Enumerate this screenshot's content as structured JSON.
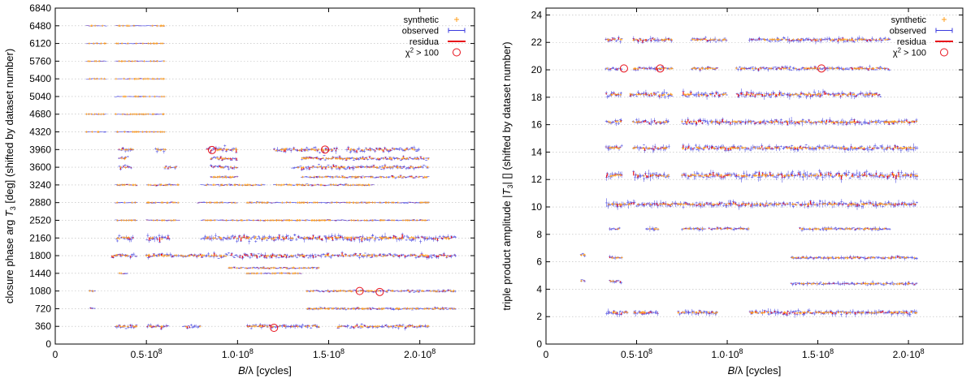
{
  "chart_data": [
    {
      "type": "scatter",
      "xlabel": "B/λ [cycles]",
      "ylabel": "closure phase arg T_3 [deg] (shifted by dataset number)",
      "xlim": [
        0,
        230000000
      ],
      "ylim": [
        0,
        6840
      ],
      "x_ticks": [
        0,
        50000000,
        100000000,
        150000000,
        200000000
      ],
      "x_tick_labels": [
        "0",
        "0.5·10^8",
        "1.0·10^8",
        "1.5·10^8",
        "2.0·10^8"
      ],
      "y_ticks": [
        0,
        360,
        720,
        1080,
        1440,
        1800,
        2160,
        2520,
        2880,
        3240,
        3600,
        3960,
        4320,
        4680,
        5040,
        5400,
        5760,
        6120,
        6480,
        6840
      ],
      "y_tick_labels": [
        "0",
        "360",
        "720",
        "1080",
        "1440",
        "1800",
        "2160",
        "2520",
        "2880",
        "3240",
        "3600",
        "3960",
        "4320",
        "4680",
        "5040",
        "5400",
        "5760",
        "6120",
        "6480",
        "6840"
      ],
      "grid": "horizontal dotted",
      "legend_position": "top-right",
      "legend": [
        {
          "label": "synthetic",
          "marker": "plus",
          "color": "#ff9f1c"
        },
        {
          "label": "observed",
          "marker": "errorbar",
          "color": "#3a3adf"
        },
        {
          "label": "residua",
          "marker": "line",
          "color": "#e8101a"
        },
        {
          "label": "χ² > 100",
          "marker": "circle",
          "color": "#e8101a"
        }
      ],
      "rows": [
        {
          "y": 6480,
          "segments": [
            [
              17000000,
              28000000
            ],
            [
              33000000,
              60000000
            ]
          ],
          "scatter": 12,
          "err": 6
        },
        {
          "y": 6120,
          "segments": [
            [
              17000000,
              28000000
            ],
            [
              33000000,
              60000000
            ]
          ],
          "scatter": 12,
          "err": 6
        },
        {
          "y": 5760,
          "segments": [
            [
              17000000,
              28000000
            ],
            [
              33000000,
              60000000
            ]
          ],
          "scatter": 12,
          "err": 6
        },
        {
          "y": 5400,
          "segments": [
            [
              17000000,
              28000000
            ],
            [
              33000000,
              60000000
            ]
          ],
          "scatter": 12,
          "err": 6
        },
        {
          "y": 5040,
          "segments": [
            [
              33000000,
              60000000
            ]
          ],
          "scatter": 10,
          "err": 5
        },
        {
          "y": 4680,
          "segments": [
            [
              17000000,
              28000000
            ],
            [
              33000000,
              60000000
            ]
          ],
          "scatter": 12,
          "err": 6
        },
        {
          "y": 4320,
          "segments": [
            [
              17000000,
              28000000
            ],
            [
              33000000,
              60000000
            ]
          ],
          "scatter": 12,
          "err": 6
        },
        {
          "y": 3960,
          "segments": [
            [
              35000000,
              43000000
            ],
            [
              55000000,
              61000000
            ],
            [
              83000000,
              100000000
            ],
            [
              120000000,
              155000000
            ],
            [
              160000000,
              200000000
            ]
          ],
          "scatter": 90,
          "err": 60
        },
        {
          "y": 3780,
          "segments": [
            [
              35000000,
              40000000
            ],
            [
              85000000,
              100000000
            ],
            [
              135000000,
              205000000
            ]
          ],
          "scatter": 70,
          "err": 40
        },
        {
          "y": 3600,
          "segments": [
            [
              35000000,
              42000000
            ],
            [
              60000000,
              67000000
            ],
            [
              85000000,
              100000000
            ],
            [
              130000000,
              205000000
            ]
          ],
          "scatter": 70,
          "err": 50
        },
        {
          "y": 3400,
          "segments": [
            [
              85000000,
              100000000
            ],
            [
              135000000,
              205000000
            ]
          ],
          "scatter": 40,
          "err": 25
        },
        {
          "y": 3240,
          "segments": [
            [
              33000000,
              45000000
            ],
            [
              50000000,
              68000000
            ],
            [
              80000000,
              115000000
            ],
            [
              120000000,
              175000000
            ]
          ],
          "scatter": 30,
          "err": 20
        },
        {
          "y": 2880,
          "segments": [
            [
              33000000,
              45000000
            ],
            [
              50000000,
              68000000
            ],
            [
              78000000,
              100000000
            ],
            [
              105000000,
              205000000
            ]
          ],
          "scatter": 20,
          "err": 15
        },
        {
          "y": 2520,
          "segments": [
            [
              33000000,
              45000000
            ],
            [
              50000000,
              68000000
            ],
            [
              80000000,
              205000000
            ]
          ],
          "scatter": 20,
          "err": 15
        },
        {
          "y": 2160,
          "segments": [
            [
              33000000,
              43000000
            ],
            [
              50000000,
              63000000
            ],
            [
              80000000,
              220000000
            ]
          ],
          "scatter": 110,
          "err": 80
        },
        {
          "y": 1800,
          "segments": [
            [
              31000000,
              45000000
            ],
            [
              50000000,
              220000000
            ]
          ],
          "scatter": 80,
          "err": 55
        },
        {
          "y": 1550,
          "segments": [
            [
              95000000,
              145000000
            ]
          ],
          "scatter": 30,
          "err": 20
        },
        {
          "y": 1440,
          "segments": [
            [
              35000000,
              40000000
            ],
            [
              105000000,
              135000000
            ]
          ],
          "scatter": 20,
          "err": 15
        },
        {
          "y": 1080,
          "segments": [
            [
              19000000,
              22000000
            ],
            [
              138000000,
              220000000
            ]
          ],
          "scatter": 40,
          "err": 30
        },
        {
          "y": 720,
          "segments": [
            [
              19000000,
              22000000
            ],
            [
              138000000,
              220000000
            ]
          ],
          "scatter": 40,
          "err": 30
        },
        {
          "y": 360,
          "segments": [
            [
              33000000,
              45000000
            ],
            [
              50000000,
              62000000
            ],
            [
              70000000,
              80000000
            ],
            [
              105000000,
              145000000
            ],
            [
              155000000,
              205000000
            ]
          ],
          "scatter": 70,
          "err": 55
        }
      ],
      "outliers": [
        [
          86000000,
          3950
        ],
        [
          120000000,
          330
        ],
        [
          167000000,
          1080
        ],
        [
          178000000,
          1060
        ],
        [
          148000000,
          3960
        ]
      ]
    },
    {
      "type": "scatter",
      "xlabel": "B/λ [cycles]",
      "ylabel": "triple product amplitude |T_3| [] (shifted by dataset number)",
      "xlim": [
        0,
        230000000
      ],
      "ylim": [
        0,
        24.5
      ],
      "x_ticks": [
        0,
        50000000,
        100000000,
        150000000,
        200000000
      ],
      "x_tick_labels": [
        "0",
        "0.5·10^8",
        "1.0·10^8",
        "1.5·10^8",
        "2.0·10^8"
      ],
      "y_ticks": [
        0,
        2,
        4,
        6,
        8,
        10,
        12,
        14,
        16,
        18,
        20,
        22,
        24
      ],
      "y_tick_labels": [
        "0",
        "2",
        "4",
        "6",
        "8",
        "10",
        "12",
        "14",
        "16",
        "18",
        "20",
        "22",
        "24"
      ],
      "grid": "horizontal dotted",
      "legend_position": "top-right",
      "legend": [
        {
          "label": "synthetic",
          "marker": "plus",
          "color": "#ff9f1c"
        },
        {
          "label": "observed",
          "marker": "errorbar",
          "color": "#3a3adf"
        },
        {
          "label": "residua",
          "marker": "line",
          "color": "#e8101a"
        },
        {
          "label": "χ² > 100",
          "marker": "circle",
          "color": "#e8101a"
        }
      ],
      "rows": [
        {
          "y": 22.2,
          "segments": [
            [
              33000000,
              42000000
            ],
            [
              48000000,
              70000000
            ],
            [
              80000000,
              100000000
            ],
            [
              112000000,
              190000000
            ]
          ],
          "scatter": 0.25,
          "err": 0.25
        },
        {
          "y": 20.1,
          "segments": [
            [
              33000000,
              42000000
            ],
            [
              48000000,
              70000000
            ],
            [
              80000000,
              95000000
            ],
            [
              105000000,
              190000000
            ]
          ],
          "scatter": 0.2,
          "err": 0.2
        },
        {
          "y": 18.2,
          "segments": [
            [
              33000000,
              42000000
            ],
            [
              46000000,
              70000000
            ],
            [
              75000000,
              100000000
            ],
            [
              105000000,
              185000000
            ]
          ],
          "scatter": 0.3,
          "err": 0.3
        },
        {
          "y": 16.2,
          "segments": [
            [
              33000000,
              42000000
            ],
            [
              48000000,
              68000000
            ],
            [
              75000000,
              205000000
            ]
          ],
          "scatter": 0.3,
          "err": 0.3
        },
        {
          "y": 14.3,
          "segments": [
            [
              33000000,
              42000000
            ],
            [
              48000000,
              68000000
            ],
            [
              75000000,
              205000000
            ]
          ],
          "scatter": 0.3,
          "err": 0.3
        },
        {
          "y": 12.3,
          "segments": [
            [
              33000000,
              42000000
            ],
            [
              48000000,
              68000000
            ],
            [
              75000000,
              205000000
            ]
          ],
          "scatter": 0.4,
          "err": 0.4
        },
        {
          "y": 10.2,
          "segments": [
            [
              33000000,
              205000000
            ]
          ],
          "scatter": 0.3,
          "err": 0.35
        },
        {
          "y": 8.4,
          "segments": [
            [
              35000000,
              41000000
            ],
            [
              55000000,
              62000000
            ],
            [
              75000000,
              88000000
            ],
            [
              90000000,
              112000000
            ],
            [
              140000000,
              190000000
            ]
          ],
          "scatter": 0.15,
          "err": 0.2
        },
        {
          "y": 6.5,
          "segments": [
            [
              19000000,
              22000000
            ]
          ],
          "scatter": 0.25,
          "err": 0.25
        },
        {
          "y": 6.3,
          "segments": [
            [
              35000000,
              42000000
            ],
            [
              135000000,
              205000000
            ]
          ],
          "scatter": 0.15,
          "err": 0.2
        },
        {
          "y": 4.6,
          "segments": [
            [
              19000000,
              22000000
            ],
            [
              35000000,
              42000000
            ]
          ],
          "scatter": 0.2,
          "err": 0.2
        },
        {
          "y": 4.4,
          "segments": [
            [
              135000000,
              205000000
            ]
          ],
          "scatter": 0.15,
          "err": 0.2
        },
        {
          "y": 2.3,
          "segments": [
            [
              33000000,
              45000000
            ],
            [
              48000000,
              62000000
            ],
            [
              73000000,
              95000000
            ],
            [
              112000000,
              205000000
            ]
          ],
          "scatter": 0.25,
          "err": 0.3
        }
      ],
      "outliers": [
        [
          43000000,
          20.1
        ],
        [
          63000000,
          20.1
        ],
        [
          152000000,
          20.1
        ]
      ]
    }
  ]
}
